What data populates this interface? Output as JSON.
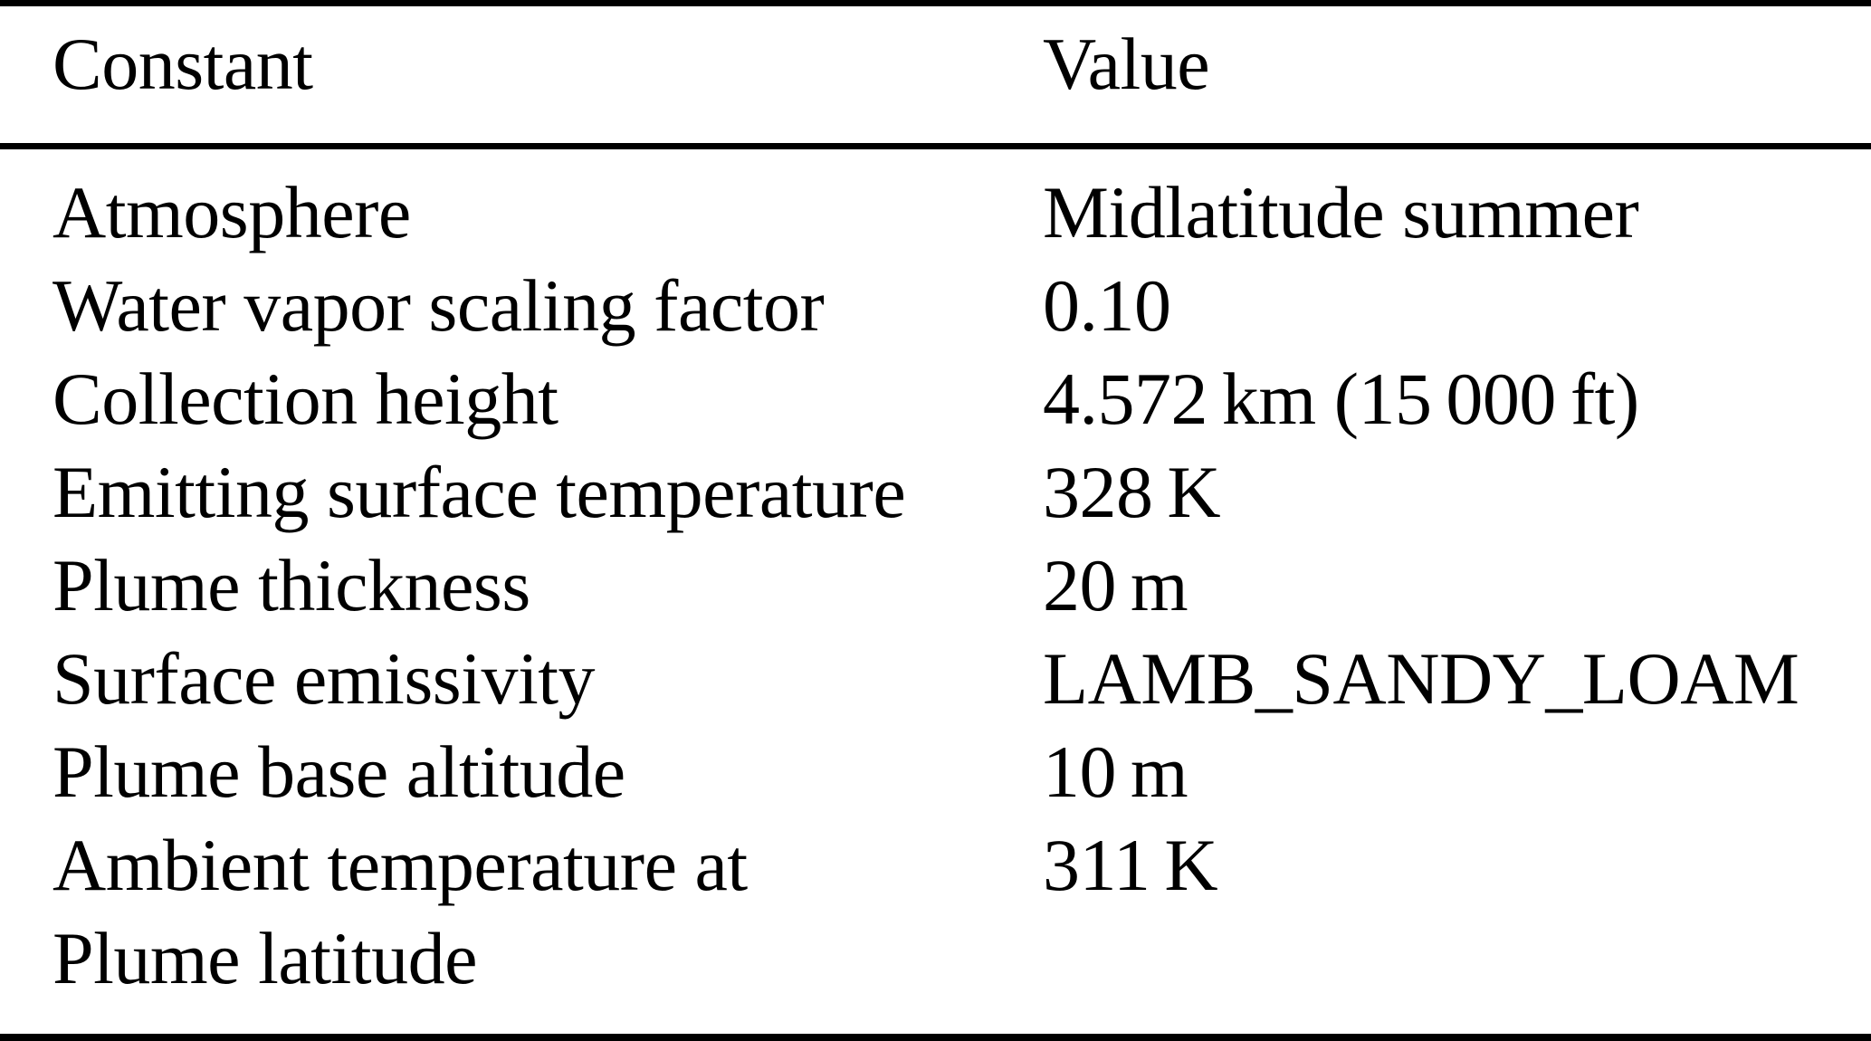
{
  "table": {
    "columns": [
      "Constant",
      "Value"
    ],
    "rows": [
      {
        "constant": "Atmosphere",
        "value": "Midlatitude summer"
      },
      {
        "constant": "Water vapor scaling factor",
        "value": "0.10"
      },
      {
        "constant": "Collection height",
        "value": "4.572 km (15 000 ft)"
      },
      {
        "constant": "Emitting surface temperature",
        "value": "328 K"
      },
      {
        "constant": "Plume thickness",
        "value": "20 m"
      },
      {
        "constant": "Surface emissivity",
        "value": "LAMB_SANDY_LOAM"
      },
      {
        "constant": "Plume base altitude",
        "value": "10 m"
      },
      {
        "constant": "Ambient temperature at",
        "value": "311 K"
      },
      {
        "constant": "Plume latitude",
        "value": ""
      }
    ],
    "colors": {
      "text": "#000000",
      "background": "#ffffff",
      "rule": "#000000"
    }
  }
}
